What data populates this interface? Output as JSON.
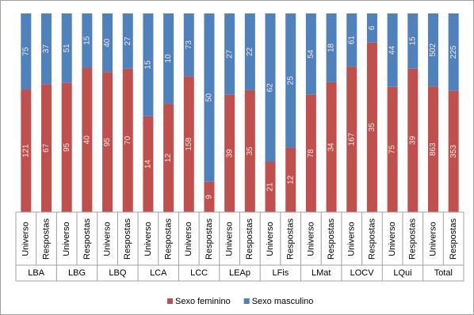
{
  "chart_data": {
    "type": "stacked_percent_bar",
    "groups": [
      "LBA",
      "LBG",
      "LBQ",
      "LCA",
      "LCC",
      "LEAp",
      "LFis",
      "LMat",
      "LOCV",
      "LQui",
      "Total"
    ],
    "categories": [
      "Universo",
      "Respostas",
      "Universo",
      "Respostas",
      "Universo",
      "Respostas",
      "Universo",
      "Respostas",
      "Universo",
      "Respostas",
      "Universo",
      "Respostas",
      "Universo",
      "Respostas",
      "Universo",
      "Respostas",
      "Universo",
      "Respostas",
      "Universo",
      "Respostas",
      "Universo",
      "Respostas"
    ],
    "series": [
      {
        "name": "Sexo feminino",
        "color": "#c0504d",
        "values": [
          121,
          67,
          95,
          40,
          95,
          70,
          14,
          12,
          158,
          9,
          39,
          35,
          21,
          12,
          78,
          34,
          167,
          35,
          75,
          39,
          863,
          353
        ]
      },
      {
        "name": "Sexo masculino",
        "color": "#4f81bd",
        "values": [
          75,
          37,
          51,
          15,
          40,
          27,
          15,
          10,
          73,
          50,
          27,
          22,
          62,
          25,
          54,
          18,
          61,
          6,
          44,
          15,
          502,
          225
        ]
      }
    ],
    "legend": "bottom"
  }
}
